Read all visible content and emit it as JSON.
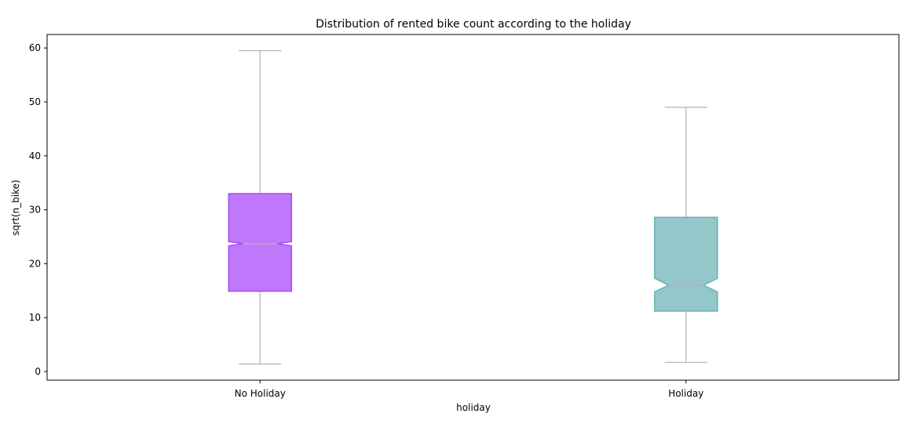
{
  "chart_data": {
    "type": "box",
    "title": "Distribution of rented bike count according to the holiday",
    "xlabel": "holiday",
    "ylabel": "sqrt(n_bike)",
    "ylim": [
      -1.6,
      62.5
    ],
    "yticks": [
      0,
      10,
      20,
      30,
      40,
      50,
      60
    ],
    "notched": true,
    "grid": false,
    "categories": [
      "No Holiday",
      "Holiday"
    ],
    "boxes": [
      {
        "category": "No Holiday",
        "whisker_low": 1.4,
        "q1": 14.9,
        "notch_low": 23.3,
        "median": 23.7,
        "notch_high": 24.1,
        "q3": 33.0,
        "whisker_high": 59.5,
        "fill_color": "#bf77fc",
        "edge_color": "#a64df5"
      },
      {
        "category": "Holiday",
        "whisker_low": 1.7,
        "q1": 11.2,
        "notch_low": 14.8,
        "median": 16.0,
        "notch_high": 17.3,
        "q3": 28.6,
        "whisker_high": 49.0,
        "fill_color": "#93c7c9",
        "edge_color": "#6bb1b4"
      }
    ],
    "whisker_color": "#b3b3b3",
    "median_color": "#b3b3b3"
  }
}
